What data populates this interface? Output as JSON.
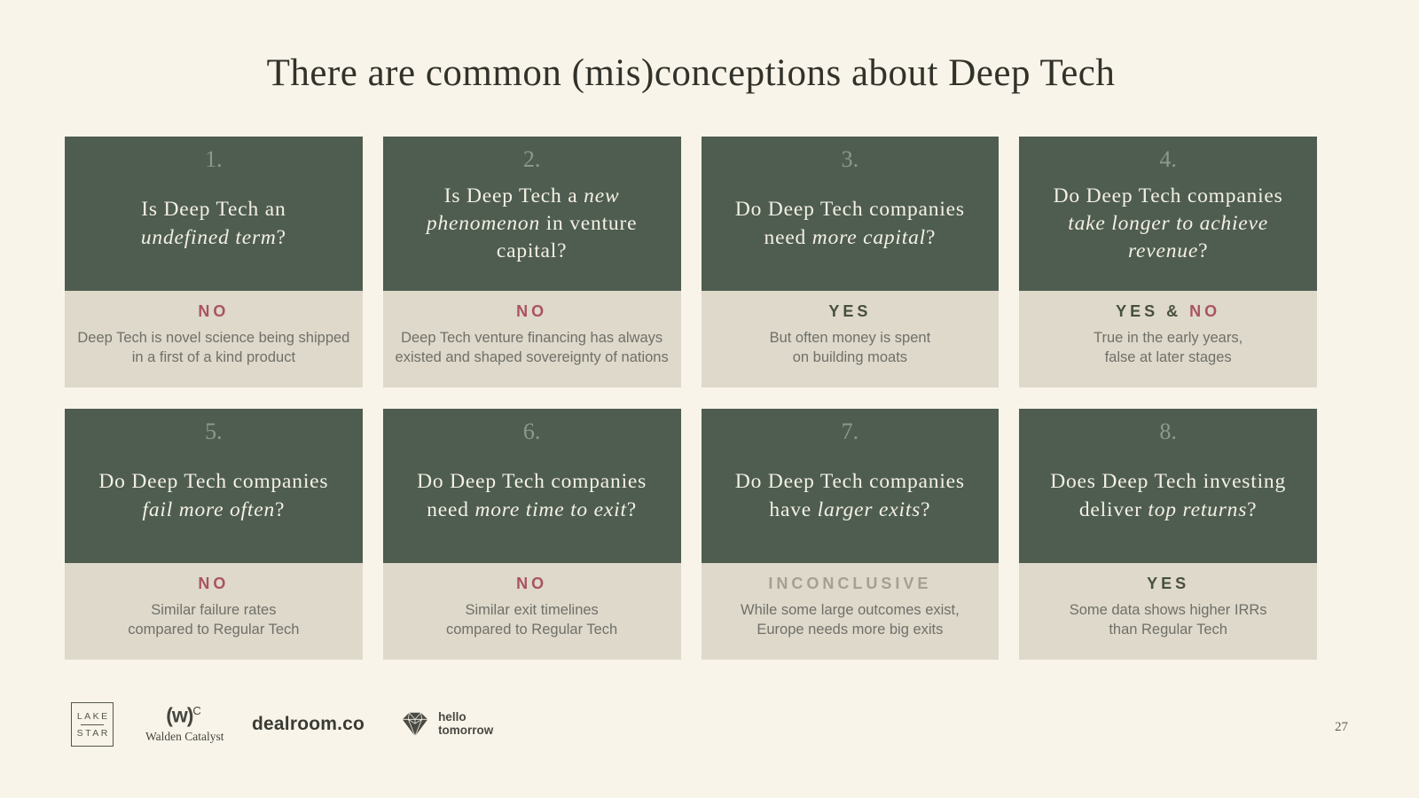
{
  "slide": {
    "title": "There are common (mis)conceptions about Deep Tech",
    "page_number": "27"
  },
  "colors": {
    "background": "#f8f4e9",
    "card_header": "#4f5d51",
    "card_footer": "#ded9ca",
    "title_text": "#32322b",
    "number_text": "#8d988b",
    "question_text": "#f3f0e3",
    "verdict_yes": "#47503f",
    "verdict_no": "#a9545f",
    "verdict_inconclusive": "#a6a092",
    "description_text": "#70706a",
    "logo_text": "#45453f"
  },
  "cards": [
    {
      "number": "1.",
      "question": [
        {
          "text": "Is Deep Tech an\n",
          "italic": false
        },
        {
          "text": "undefined term",
          "italic": true
        },
        {
          "text": "?",
          "italic": false
        }
      ],
      "verdict": [
        {
          "text": "NO",
          "type": "no"
        }
      ],
      "description": "Deep Tech is novel science being shipped\nin a first of a kind product"
    },
    {
      "number": "2.",
      "question": [
        {
          "text": "Is Deep Tech a ",
          "italic": false
        },
        {
          "text": "new\nphenomenon",
          "italic": true
        },
        {
          "text": " in venture\ncapital?",
          "italic": false
        }
      ],
      "verdict": [
        {
          "text": "NO",
          "type": "no"
        }
      ],
      "description": "Deep Tech venture financing has always\nexisted and shaped sovereignty of nations"
    },
    {
      "number": "3.",
      "question": [
        {
          "text": "Do Deep Tech companies\nneed ",
          "italic": false
        },
        {
          "text": "more capital",
          "italic": true
        },
        {
          "text": "?",
          "italic": false
        }
      ],
      "verdict": [
        {
          "text": "YES",
          "type": "yes"
        }
      ],
      "description": "But often money is spent\non building moats"
    },
    {
      "number": "4.",
      "question": [
        {
          "text": "Do Deep Tech companies\n",
          "italic": false
        },
        {
          "text": "take longer to achieve\nrevenue",
          "italic": true
        },
        {
          "text": "?",
          "italic": false
        }
      ],
      "verdict": [
        {
          "text": "YES & ",
          "type": "yes"
        },
        {
          "text": "NO",
          "type": "no"
        }
      ],
      "description": "True in the early years,\nfalse at later stages"
    },
    {
      "number": "5.",
      "question": [
        {
          "text": "Do Deep Tech companies\n",
          "italic": false
        },
        {
          "text": "fail more often",
          "italic": true
        },
        {
          "text": "?",
          "italic": false
        }
      ],
      "verdict": [
        {
          "text": "NO",
          "type": "no"
        }
      ],
      "description": "Similar failure rates\ncompared to Regular Tech"
    },
    {
      "number": "6.",
      "question": [
        {
          "text": "Do Deep Tech companies\nneed ",
          "italic": false
        },
        {
          "text": "more time to exit",
          "italic": true
        },
        {
          "text": "?",
          "italic": false
        }
      ],
      "verdict": [
        {
          "text": "NO",
          "type": "no"
        }
      ],
      "description": "Similar exit timelines\ncompared to Regular Tech"
    },
    {
      "number": "7.",
      "question": [
        {
          "text": "Do Deep Tech companies\nhave ",
          "italic": false
        },
        {
          "text": "larger exits",
          "italic": true
        },
        {
          "text": "?",
          "italic": false
        }
      ],
      "verdict": [
        {
          "text": "INCONCLUSIVE",
          "type": "inconclusive"
        }
      ],
      "description": "While some large outcomes exist,\nEurope needs more big exits"
    },
    {
      "number": "8.",
      "question": [
        {
          "text": "Does Deep Tech investing\ndeliver ",
          "italic": false
        },
        {
          "text": "top returns",
          "italic": true
        },
        {
          "text": "?",
          "italic": false
        }
      ],
      "verdict": [
        {
          "text": "YES",
          "type": "yes"
        }
      ],
      "description": "Some data shows higher IRRs\nthan Regular Tech"
    }
  ],
  "footer": {
    "lakestar": {
      "line1": "LAKE",
      "line2": "STAR"
    },
    "walden": {
      "mark": "(w)",
      "sup": "C",
      "name": "Walden Catalyst"
    },
    "dealroom": {
      "name": "dealroom.co"
    },
    "hello_tomorrow": {
      "line1": "hello",
      "line2": "tomorrow"
    }
  }
}
